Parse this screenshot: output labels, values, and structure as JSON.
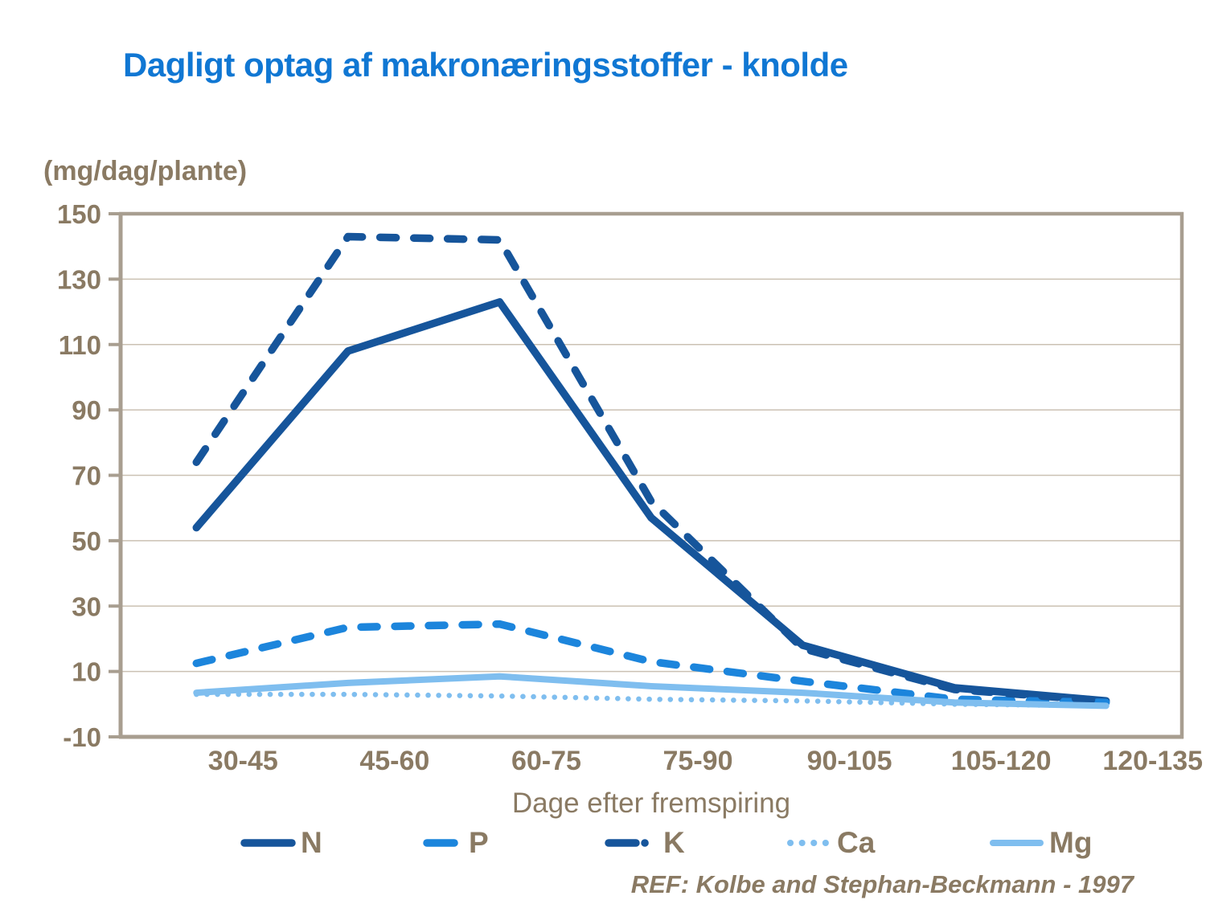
{
  "title": "Dagligt optag af makronæringsstoffer - knolde",
  "source_ref": "REF: Kolbe and Stephan-Beckmann - 1997",
  "colors": {
    "title": "#1077D3",
    "label": "#8A7A63",
    "axis": "#A89E90",
    "grid": "#CBC1B3",
    "navy_series": "#16559B",
    "blue_series": "#1C85DC",
    "light_blue_series": "#7FBEEF"
  },
  "chart_data": {
    "type": "line",
    "title": "Dagligt optag af makronæringsstoffer - knolde",
    "xlabel": "Dage efter fremspiring",
    "ylabel": "(mg/dag/plante)",
    "categories": [
      "30-45",
      "45-60",
      "60-75",
      "75-90",
      "90-105",
      "105-120",
      "120-135"
    ],
    "series": [
      {
        "name": "N",
        "legend_label": "N",
        "color": "#16559B",
        "line_style": "solid",
        "stroke_width": 9.5,
        "values": [
          54,
          108,
          123,
          57,
          18,
          5,
          1
        ]
      },
      {
        "name": "P",
        "legend_label": "P",
        "color": "#1C85DC",
        "line_style": "dash",
        "stroke_width": 9.5,
        "values": [
          12.5,
          23.5,
          24.5,
          13,
          7,
          1.5,
          0.5
        ]
      },
      {
        "name": "K",
        "legend_label": "K",
        "color": "#16559B",
        "line_style": "dash-dot",
        "stroke_width": 9.5,
        "values": [
          74,
          143,
          142,
          62,
          17,
          4.5,
          1
        ]
      },
      {
        "name": "Ca",
        "legend_label": "Ca",
        "color": "#7FBEEF",
        "line_style": "dots",
        "stroke_width": 6.5,
        "values": [
          3,
          3,
          2.5,
          1.5,
          1,
          0,
          -0.5
        ]
      },
      {
        "name": "Mg",
        "legend_label": "Mg",
        "color": "#7FBEEF",
        "line_style": "solid",
        "stroke_width": 8,
        "values": [
          3.5,
          6.5,
          8.5,
          5.5,
          3.5,
          0.5,
          -0.5
        ]
      }
    ],
    "ylim": [
      -10,
      150
    ],
    "yticks": [
      150,
      130,
      110,
      90,
      70,
      50,
      30,
      10,
      -10
    ],
    "grid": true,
    "legend_position": "bottom",
    "legend_order": [
      "N",
      "P",
      "K",
      "Ca",
      "Mg"
    ]
  }
}
